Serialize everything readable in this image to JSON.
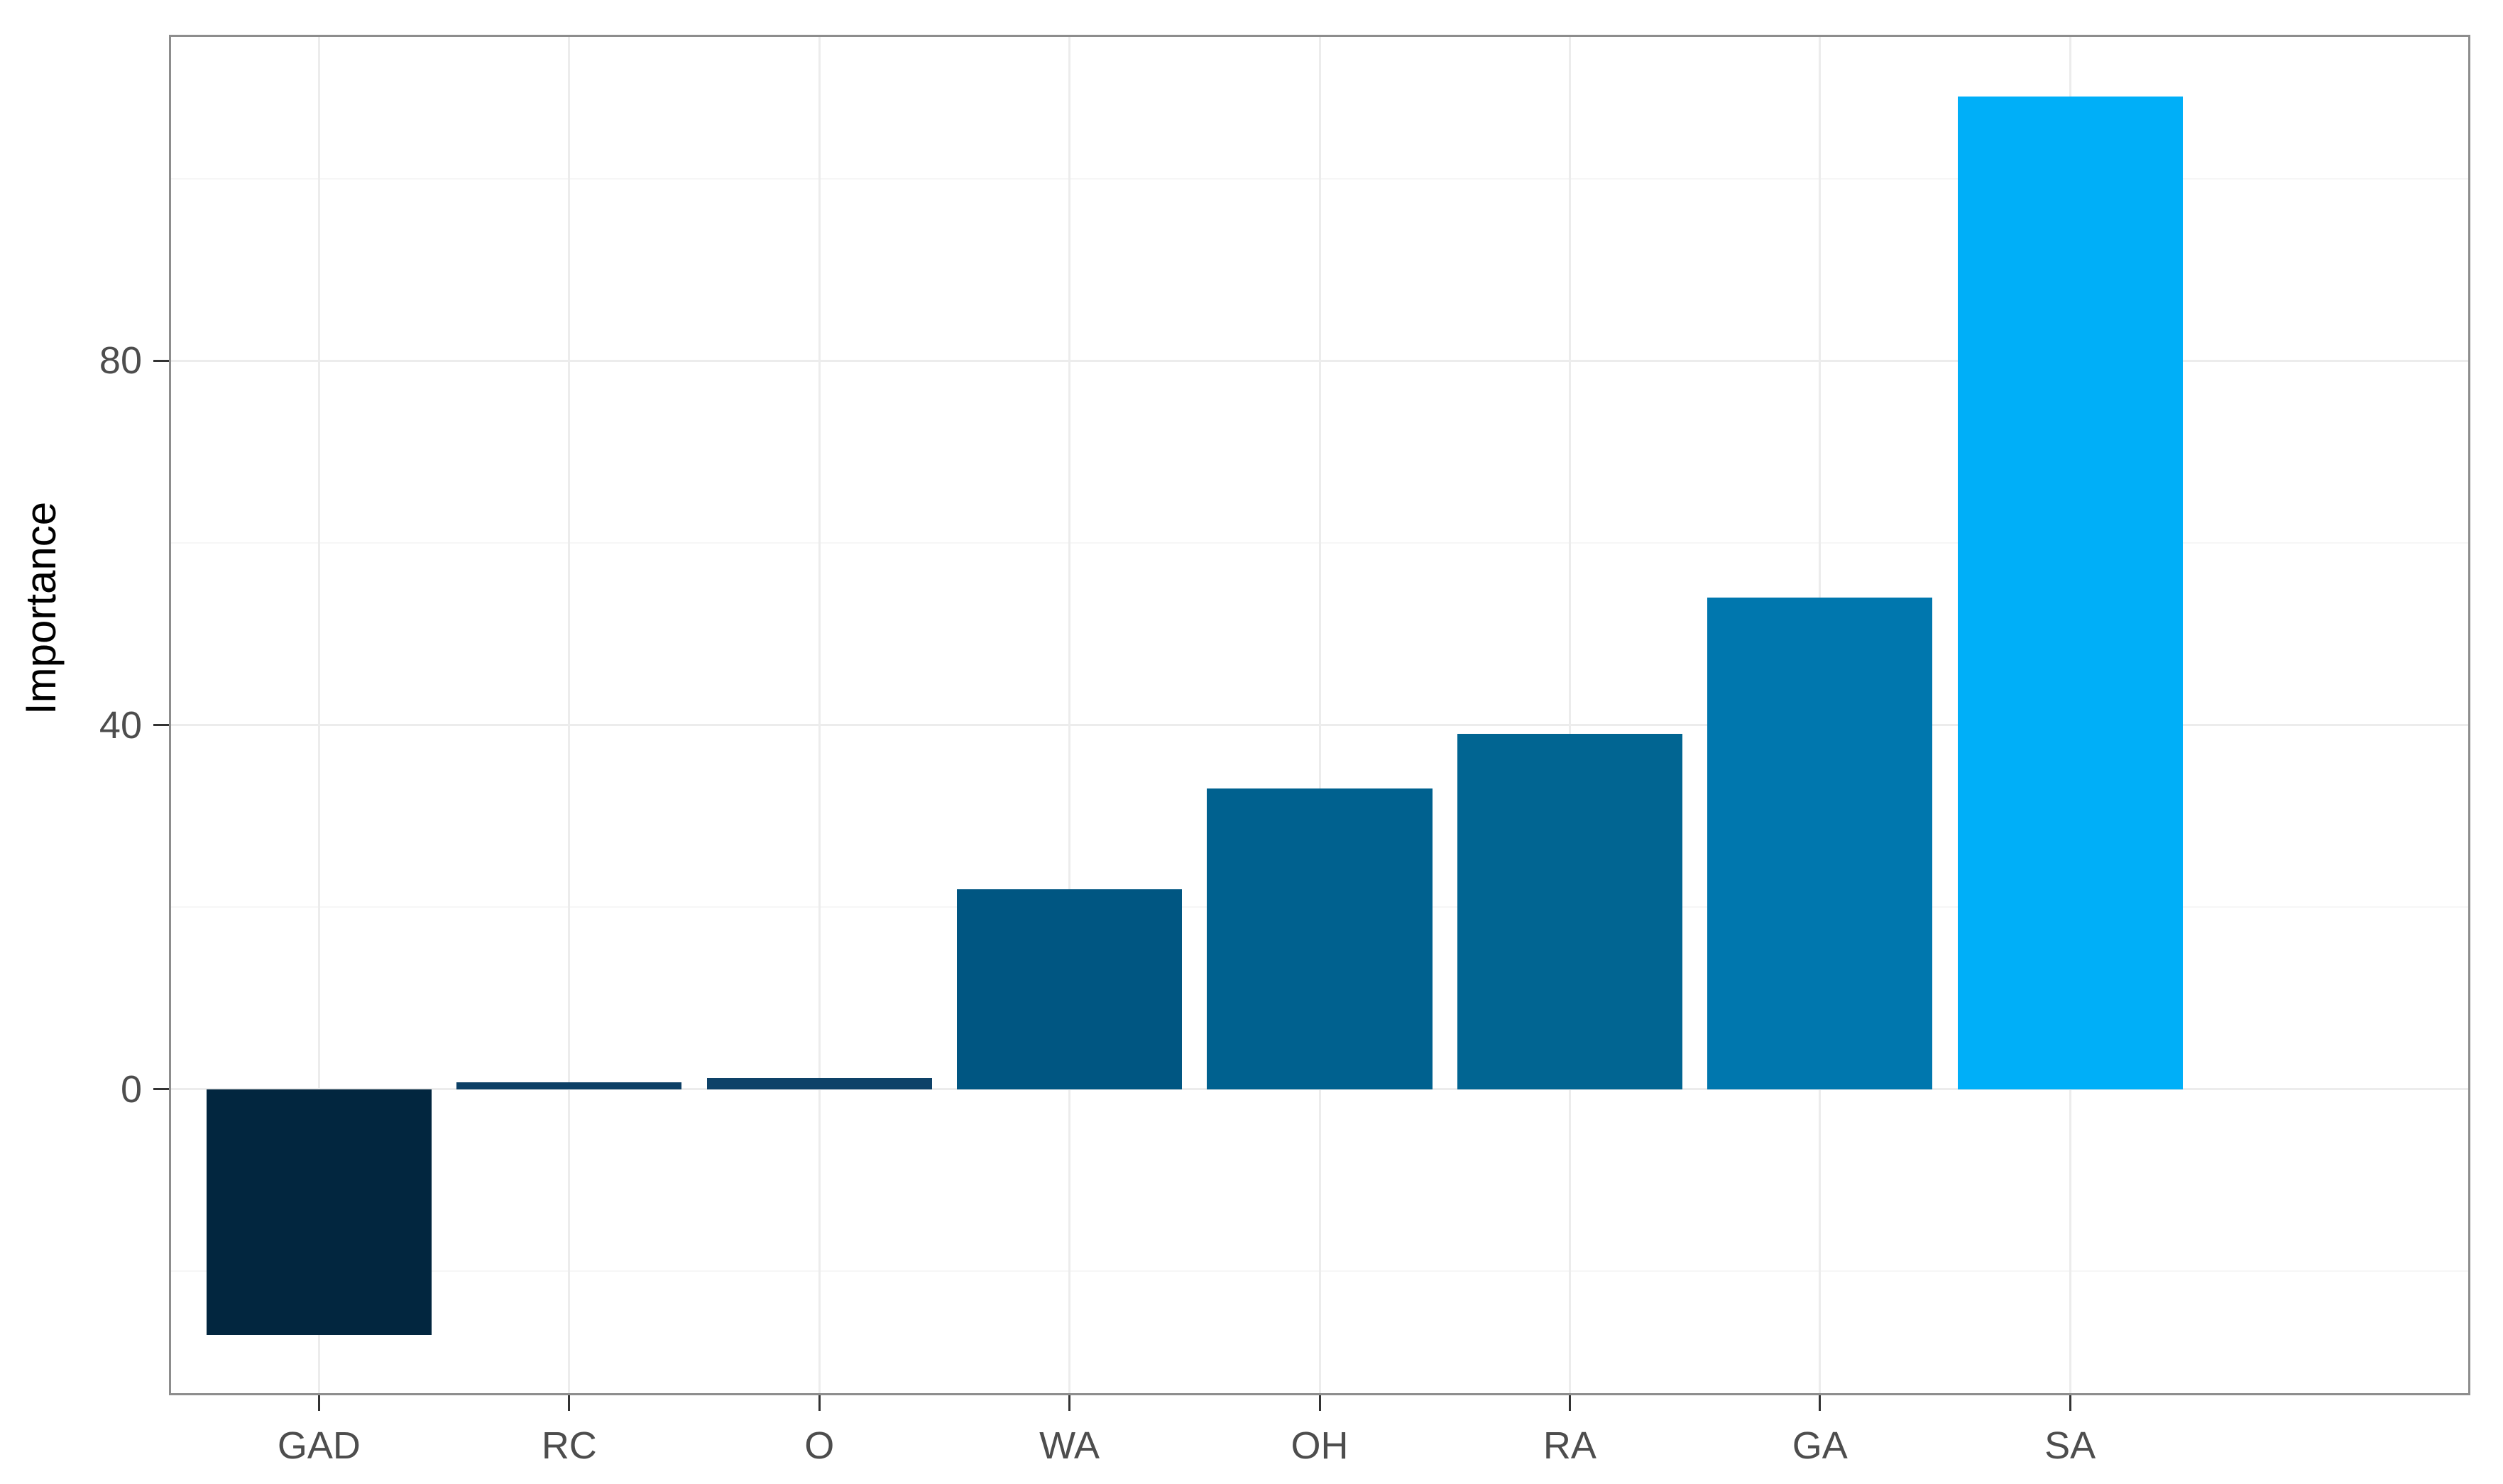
{
  "chart_data": {
    "type": "bar",
    "title": "",
    "xlabel": "",
    "ylabel": "Importance",
    "categories": [
      "GAD",
      "RC",
      "O",
      "WA",
      "OH",
      "RA",
      "GA",
      "SA"
    ],
    "values": [
      -27,
      0.8,
      1.2,
      22,
      33,
      39,
      54,
      109
    ],
    "bar_colors": [
      "#02263F",
      "#0D4066",
      "#0E4268",
      "#005682",
      "#00618F",
      "#016592",
      "#0077AE",
      "#00AFF8"
    ],
    "bar_width_fraction": 0.9,
    "y_ticks": [
      0,
      40,
      80
    ],
    "y_tick_labels": [
      "0",
      "40",
      "80"
    ],
    "y_minor_gridlines": [
      -20,
      20,
      60,
      100
    ],
    "ylim": [
      -33.6,
      115.8
    ],
    "grid": true,
    "legend": false,
    "style": {
      "background": "#FFFFFF",
      "panel_background": "#FFFFFF",
      "panel_border_color": "#8D8D8D",
      "grid_major_color": "#ECECEC",
      "grid_minor_color": "#F6F6F6",
      "tick_mark_color": "#333333",
      "tick_label_color": "#4D4D4D",
      "axis_title_color": "#000000"
    }
  }
}
